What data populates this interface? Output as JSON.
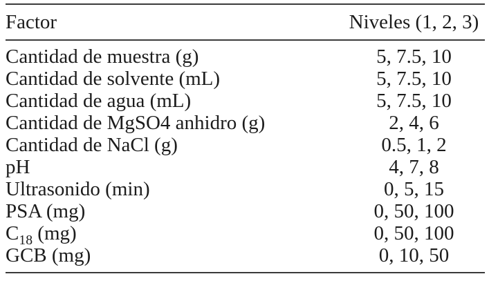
{
  "colors": {
    "background": "#ffffff",
    "text": "#1c1c1c",
    "rule": "#3a3a3a"
  },
  "table": {
    "columns": [
      {
        "label": "Factor",
        "align": "left"
      },
      {
        "label": "Niveles (1, 2, 3)",
        "align": "center"
      }
    ],
    "rows": [
      {
        "factor": "Cantidad de muestra (g)",
        "levels": "5, 7.5, 10"
      },
      {
        "factor": "Cantidad de solvente (mL)",
        "levels": "5, 7.5, 10"
      },
      {
        "factor": "Cantidad de agua (mL)",
        "levels": "5, 7.5, 10"
      },
      {
        "factor": "Cantidad de MgSO4 anhidro (g)",
        "levels": "2, 4, 6"
      },
      {
        "factor": "Cantidad de NaCl (g)",
        "levels": "0.5, 1, 2"
      },
      {
        "factor": "pH",
        "levels": "4, 7, 8"
      },
      {
        "factor": "Ultrasonido (min)",
        "levels": "0, 5, 15"
      },
      {
        "factor": "PSA (mg)",
        "levels": "0, 50, 100"
      },
      {
        "factor": "C18 (mg)",
        "factor_parts": {
          "pre": "C",
          "sub": "18",
          "post": " (mg)"
        },
        "levels": "0, 50, 100"
      },
      {
        "factor": "GCB (mg)",
        "levels": "0, 10, 50"
      }
    ]
  }
}
